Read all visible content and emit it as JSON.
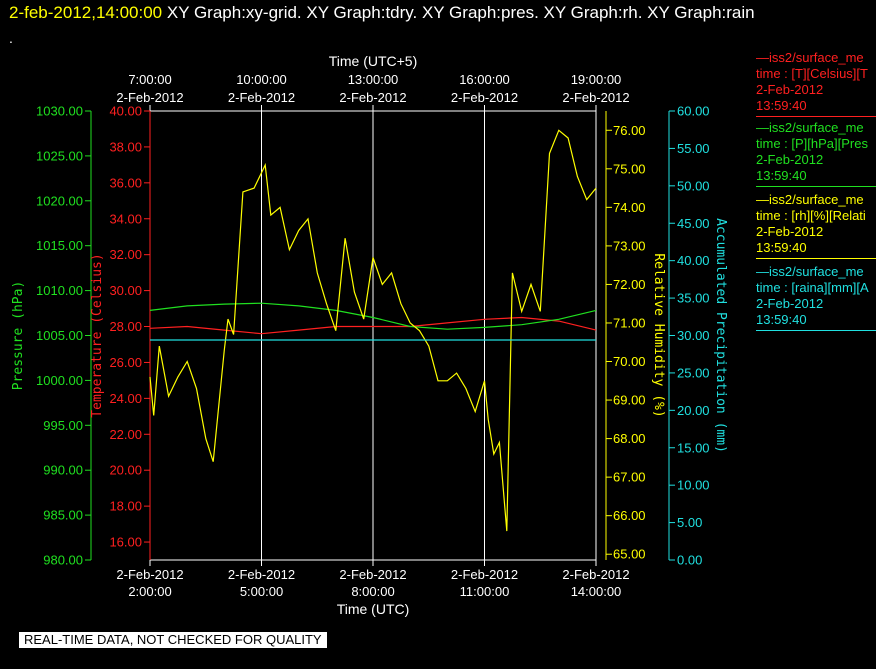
{
  "header": {
    "datetime": "2-feb-2012,14:00:00",
    "graphs": "XY Graph:xy-grid.  XY Graph:tdry.  XY Graph:pres.  XY Graph:rh.  XY Graph:rain",
    "dot": "."
  },
  "colors": {
    "temperature": "#ff2020",
    "pressure": "#20e020",
    "humidity": "#ffff00",
    "precip": "#20e0e0",
    "grid": "#ffffff"
  },
  "legend": [
    {
      "name": "—iss2/surface_me",
      "var": "time : [T][Celsius][T",
      "date": "2-Feb-2012",
      "time": "13:59:40",
      "color": "#ff2020"
    },
    {
      "name": "—iss2/surface_me",
      "var": "time : [P][hPa][Pres",
      "date": "2-Feb-2012",
      "time": "13:59:40",
      "color": "#20e020"
    },
    {
      "name": "—iss2/surface_me",
      "var": "time : [rh][%][Relati",
      "date": "2-Feb-2012",
      "time": "13:59:40",
      "color": "#ffff00"
    },
    {
      "name": "—iss2/surface_me",
      "var": "time : [raina][mm][A",
      "date": "2-Feb-2012",
      "time": "13:59:40",
      "color": "#20e0e0"
    }
  ],
  "banner": "REAL-TIME DATA, NOT CHECKED FOR QUALITY",
  "chart_data": {
    "type": "line",
    "x_bottom": {
      "label": "Time (UTC)",
      "range": [
        2,
        14
      ],
      "ticks": [
        {
          "x": 2,
          "date": "2-Feb-2012",
          "time": "2:00:00"
        },
        {
          "x": 5,
          "date": "2-Feb-2012",
          "time": "5:00:00"
        },
        {
          "x": 8,
          "date": "2-Feb-2012",
          "time": "8:00:00"
        },
        {
          "x": 11,
          "date": "2-Feb-2012",
          "time": "11:00:00"
        },
        {
          "x": 14,
          "date": "2-Feb-2012",
          "time": "14:00:00"
        }
      ]
    },
    "x_top": {
      "label": "Time (UTC+5)",
      "ticks": [
        {
          "x": 2,
          "time": "7:00:00",
          "date": "2-Feb-2012"
        },
        {
          "x": 5,
          "time": "10:00:00",
          "date": "2-Feb-2012"
        },
        {
          "x": 8,
          "time": "13:00:00",
          "date": "2-Feb-2012"
        },
        {
          "x": 11,
          "time": "16:00:00",
          "date": "2-Feb-2012"
        },
        {
          "x": 14,
          "time": "19:00:00",
          "date": "2-Feb-2012"
        }
      ]
    },
    "axes": {
      "pressure": {
        "label": "Pressure (hPa)",
        "range": [
          980,
          1030
        ],
        "ticks": [
          "980.00",
          "985.00",
          "990.00",
          "995.00",
          "1000.00",
          "1005.00",
          "1010.00",
          "1015.00",
          "1020.00",
          "1025.00",
          "1030.00"
        ],
        "color": "#20e020"
      },
      "temperature": {
        "label": "Temperature (Celsius)",
        "range": [
          15,
          40
        ],
        "ticks": [
          "16.00",
          "18.00",
          "20.00",
          "22.00",
          "24.00",
          "26.00",
          "28.00",
          "30.00",
          "32.00",
          "34.00",
          "36.00",
          "38.00",
          "40.00"
        ],
        "color": "#ff2020"
      },
      "humidity": {
        "label": "Relative Humidity (%)",
        "range": [
          64.85,
          76.5
        ],
        "ticks": [
          "65.00",
          "66.00",
          "67.00",
          "68.00",
          "69.00",
          "70.00",
          "71.00",
          "72.00",
          "73.00",
          "74.00",
          "75.00",
          "76.00"
        ],
        "color": "#ffff00"
      },
      "precip": {
        "label": "Accumulated Precipitation (mm)",
        "range": [
          0,
          60
        ],
        "ticks": [
          "0.00",
          "5.00",
          "10.00",
          "15.00",
          "20.00",
          "25.00",
          "30.00",
          "35.00",
          "40.00",
          "45.00",
          "50.00",
          "55.00",
          "60.00"
        ],
        "color": "#20e0e0"
      }
    },
    "grid": true,
    "series": [
      {
        "name": "time : [T][Celsius][T",
        "axis": "temperature",
        "color": "#ff2020",
        "x": [
          2.0,
          3.0,
          4.0,
          5.0,
          6.0,
          7.0,
          8.0,
          9.0,
          10.0,
          11.0,
          12.0,
          13.0,
          14.0
        ],
        "y": [
          27.9,
          28.0,
          27.8,
          27.6,
          27.8,
          28.0,
          28.0,
          28.0,
          28.2,
          28.4,
          28.5,
          28.3,
          27.8
        ]
      },
      {
        "name": "time : [P][hPa][Pres",
        "axis": "pressure",
        "color": "#20e020",
        "x": [
          2.0,
          3.0,
          4.0,
          5.0,
          6.0,
          7.0,
          8.0,
          9.0,
          10.0,
          11.0,
          12.0,
          13.0,
          14.0
        ],
        "y": [
          1007.8,
          1008.3,
          1008.5,
          1008.6,
          1008.3,
          1007.8,
          1007.0,
          1006.0,
          1005.7,
          1005.9,
          1006.2,
          1006.8,
          1007.8
        ]
      },
      {
        "name": "time : [rh][%][Relati",
        "axis": "humidity",
        "color": "#ffff00",
        "x": [
          2.0,
          2.1,
          2.25,
          2.5,
          2.75,
          3.0,
          3.25,
          3.5,
          3.7,
          4.0,
          4.1,
          4.25,
          4.5,
          4.8,
          5.0,
          5.1,
          5.25,
          5.5,
          5.75,
          6.0,
          6.25,
          6.5,
          6.75,
          7.0,
          7.25,
          7.5,
          7.75,
          8.0,
          8.25,
          8.5,
          8.75,
          9.0,
          9.25,
          9.5,
          9.75,
          10.0,
          10.25,
          10.5,
          10.75,
          11.0,
          11.1,
          11.25,
          11.4,
          11.6,
          11.75,
          12.0,
          12.25,
          12.5,
          12.75,
          13.0,
          13.25,
          13.5,
          13.75,
          14.0
        ],
        "y": [
          69.6,
          68.6,
          70.4,
          69.1,
          69.6,
          70.0,
          69.3,
          68.0,
          67.4,
          70.3,
          71.1,
          70.7,
          74.4,
          74.5,
          74.9,
          75.1,
          73.8,
          74.0,
          72.9,
          73.4,
          73.7,
          72.3,
          71.5,
          70.8,
          73.2,
          71.8,
          71.1,
          72.7,
          72.0,
          72.3,
          71.5,
          71.0,
          70.8,
          70.4,
          69.5,
          69.5,
          69.7,
          69.3,
          68.7,
          69.5,
          68.5,
          67.6,
          67.9,
          65.6,
          72.3,
          71.3,
          72.0,
          71.3,
          75.4,
          76.0,
          75.8,
          74.8,
          74.2,
          74.5
        ]
      },
      {
        "name": "time : [raina][mm][A",
        "axis": "precip",
        "color": "#20e0e0",
        "x": [
          2.0,
          14.0
        ],
        "y": [
          29.4,
          29.4
        ]
      }
    ]
  }
}
